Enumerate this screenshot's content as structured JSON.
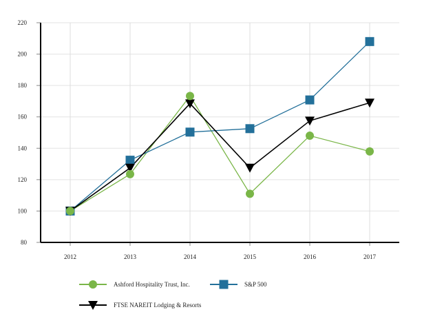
{
  "chart_data": {
    "type": "line",
    "title": "",
    "xlabel": "",
    "ylabel": "",
    "categories": [
      "2012",
      "2013",
      "2014",
      "2015",
      "2016",
      "2017"
    ],
    "ylim": [
      80,
      220
    ],
    "yticks": [
      80,
      100,
      120,
      140,
      160,
      180,
      200,
      220
    ],
    "grid": true,
    "legend_placement": "bottom-left",
    "series": [
      {
        "name": "Ashford Hospitality Trust, Inc.",
        "color": "#7ab648",
        "marker": "circle",
        "values": [
          100,
          123.5,
          173.3,
          111,
          148,
          138
        ]
      },
      {
        "name": "S&P 500",
        "color": "#23709a",
        "marker": "square",
        "values": [
          100,
          132.4,
          150.3,
          152.5,
          170.8,
          208
        ]
      },
      {
        "name": "FTSE NAREIT Lodging & Resorts",
        "color": "#000000",
        "marker": "triangle-down",
        "values": [
          100,
          127.5,
          168.5,
          127.5,
          157.5,
          169
        ]
      }
    ]
  }
}
